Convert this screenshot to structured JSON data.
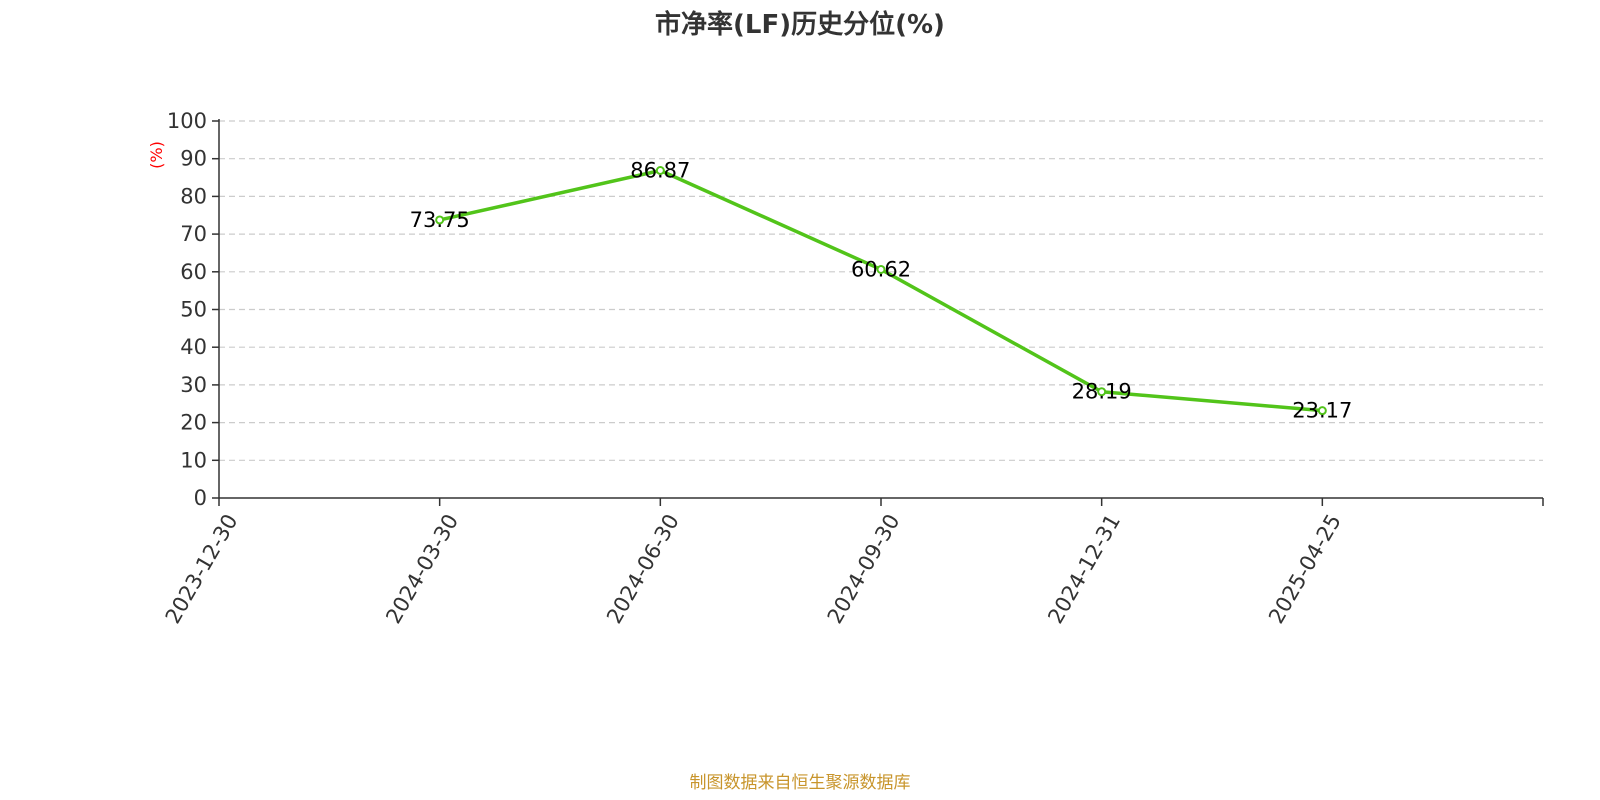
{
  "chart_data": {
    "type": "line",
    "title": "市净率(LF)历史分位(%)",
    "ylabel": "(%)",
    "x_tick_labels": [
      "2023-12-30",
      "2024-03-30",
      "2024-06-30",
      "2024-09-30",
      "2024-12-31",
      "2025-04-25"
    ],
    "x": [
      "2024-03-30",
      "2024-06-30",
      "2024-09-30",
      "2024-12-31",
      "2025-04-25"
    ],
    "values": [
      73.75,
      86.87,
      60.62,
      28.19,
      23.17
    ],
    "data_labels": [
      "73.75",
      "86.87",
      "60.62",
      "28.19",
      "23.17"
    ],
    "ylim": [
      0,
      100
    ],
    "y_ticks": [
      0,
      10,
      20,
      30,
      40,
      50,
      60,
      70,
      80,
      90,
      100
    ],
    "grid": true,
    "legend": "none"
  },
  "source_text": "制图数据来自恒生聚源数据库",
  "colors": {
    "line": "#52c41a",
    "title": "#333333",
    "unit_label": "#ff0000",
    "source_text": "#c8952c",
    "grid": "#cccccc",
    "axis": "#333333"
  }
}
